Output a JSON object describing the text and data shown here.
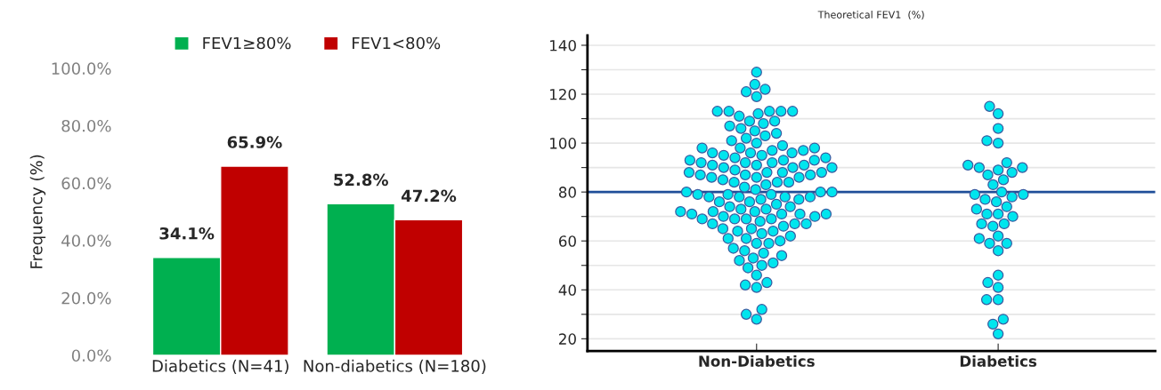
{
  "chart_data": [
    {
      "type": "bar",
      "ylabel": "Frequency (%)",
      "categories": [
        "Diabetics (N=41)",
        "Non-diabetics (N=180)"
      ],
      "series": [
        {
          "name": "FEV1≥80%",
          "color": "#00b050",
          "values": [
            34.1,
            52.8
          ],
          "value_labels": [
            "34.1%",
            "52.8%"
          ]
        },
        {
          "name": "FEV1<80%",
          "color": "#c00000",
          "values": [
            65.9,
            47.2
          ],
          "value_labels": [
            "65.9%",
            "47.2%"
          ]
        }
      ],
      "ylim": [
        0,
        100
      ],
      "yticks": [
        {
          "value": 0,
          "label": "0.0%"
        },
        {
          "value": 20,
          "label": "20.0%"
        },
        {
          "value": 40,
          "label": "40.0%"
        },
        {
          "value": 60,
          "label": "60.0%"
        },
        {
          "value": 80,
          "label": "80.0%"
        },
        {
          "value": 100,
          "label": "100.0%"
        }
      ],
      "grid": false,
      "legend": "top"
    },
    {
      "type": "scatter",
      "title": "Theoretical FEV1  (%)",
      "categories": [
        "Non-Diabetics",
        "Diabetics"
      ],
      "series": [
        {
          "color": "#00e5ee",
          "x": [
            "Non-Diabetics",
            "Non-Diabetics",
            "Non-Diabetics",
            "Non-Diabetics",
            "Non-Diabetics",
            "Non-Diabetics",
            "Non-Diabetics",
            "Non-Diabetics",
            "Non-Diabetics",
            "Non-Diabetics",
            "Non-Diabetics",
            "Non-Diabetics",
            "Non-Diabetics",
            "Non-Diabetics",
            "Non-Diabetics",
            "Non-Diabetics",
            "Non-Diabetics",
            "Non-Diabetics",
            "Non-Diabetics",
            "Non-Diabetics",
            "Non-Diabetics",
            "Non-Diabetics",
            "Non-Diabetics",
            "Non-Diabetics",
            "Non-Diabetics",
            "Non-Diabetics",
            "Non-Diabetics",
            "Non-Diabetics",
            "Non-Diabetics",
            "Non-Diabetics",
            "Non-Diabetics",
            "Non-Diabetics",
            "Non-Diabetics",
            "Non-Diabetics",
            "Non-Diabetics",
            "Non-Diabetics",
            "Non-Diabetics",
            "Non-Diabetics",
            "Non-Diabetics",
            "Non-Diabetics",
            "Non-Diabetics",
            "Non-Diabetics",
            "Non-Diabetics",
            "Non-Diabetics",
            "Non-Diabetics",
            "Non-Diabetics",
            "Non-Diabetics",
            "Non-Diabetics",
            "Non-Diabetics",
            "Non-Diabetics",
            "Non-Diabetics",
            "Non-Diabetics",
            "Non-Diabetics",
            "Non-Diabetics",
            "Non-Diabetics",
            "Non-Diabetics",
            "Non-Diabetics",
            "Non-Diabetics",
            "Non-Diabetics",
            "Non-Diabetics",
            "Non-Diabetics",
            "Non-Diabetics",
            "Non-Diabetics",
            "Non-Diabetics",
            "Non-Diabetics",
            "Non-Diabetics",
            "Non-Diabetics",
            "Non-Diabetics",
            "Non-Diabetics",
            "Non-Diabetics",
            "Non-Diabetics",
            "Non-Diabetics",
            "Non-Diabetics",
            "Non-Diabetics",
            "Non-Diabetics",
            "Non-Diabetics",
            "Non-Diabetics",
            "Non-Diabetics",
            "Non-Diabetics",
            "Non-Diabetics",
            "Non-Diabetics",
            "Non-Diabetics",
            "Non-Diabetics",
            "Non-Diabetics",
            "Non-Diabetics",
            "Non-Diabetics",
            "Non-Diabetics",
            "Non-Diabetics",
            "Non-Diabetics",
            "Non-Diabetics",
            "Non-Diabetics",
            "Non-Diabetics",
            "Non-Diabetics",
            "Non-Diabetics",
            "Non-Diabetics",
            "Non-Diabetics",
            "Non-Diabetics",
            "Non-Diabetics",
            "Non-Diabetics",
            "Non-Diabetics",
            "Non-Diabetics",
            "Non-Diabetics",
            "Non-Diabetics",
            "Non-Diabetics",
            "Non-Diabetics",
            "Non-Diabetics",
            "Non-Diabetics",
            "Non-Diabetics",
            "Non-Diabetics",
            "Non-Diabetics",
            "Non-Diabetics",
            "Non-Diabetics",
            "Non-Diabetics",
            "Non-Diabetics",
            "Non-Diabetics",
            "Non-Diabetics",
            "Non-Diabetics",
            "Non-Diabetics",
            "Non-Diabetics",
            "Non-Diabetics",
            "Non-Diabetics",
            "Non-Diabetics",
            "Non-Diabetics",
            "Non-Diabetics",
            "Non-Diabetics",
            "Non-Diabetics",
            "Non-Diabetics",
            "Non-Diabetics",
            "Non-Diabetics",
            "Non-Diabetics"
          ],
          "values": [
            129,
            124,
            122,
            121,
            119,
            113,
            113,
            113,
            113,
            113,
            112,
            111,
            109,
            109,
            108,
            107,
            106,
            105,
            104,
            103,
            102,
            101,
            100,
            99,
            98,
            98,
            98,
            97,
            96,
            96,
            96,
            95,
            94,
            94,
            93,
            93,
            93,
            92,
            92,
            91,
            91,
            91,
            90,
            90,
            89,
            88,
            88,
            88,
            88,
            87,
            87,
            86,
            86,
            86,
            85,
            84,
            84,
            83,
            82,
            81,
            80,
            80,
            79,
            79,
            79,
            78,
            78,
            78,
            77,
            77,
            76,
            76,
            75,
            74,
            74,
            73,
            73,
            72,
            72,
            72,
            71,
            71,
            71,
            70,
            70,
            69,
            69,
            69,
            68,
            67,
            67,
            66,
            65,
            65,
            64,
            64,
            63,
            62,
            61,
            60,
            59,
            59,
            57,
            56,
            55,
            54,
            53,
            52,
            51,
            50,
            49,
            46,
            43,
            42,
            41,
            32,
            30,
            28,
            87,
            90,
            92,
            95,
            97,
            84,
            80,
            78,
            71,
            69,
            67,
            61
          ]
        },
        {
          "color": "#00e5ee",
          "x": [
            "Diabetics",
            "Diabetics",
            "Diabetics",
            "Diabetics",
            "Diabetics",
            "Diabetics",
            "Diabetics",
            "Diabetics",
            "Diabetics",
            "Diabetics",
            "Diabetics",
            "Diabetics",
            "Diabetics",
            "Diabetics",
            "Diabetics",
            "Diabetics",
            "Diabetics",
            "Diabetics",
            "Diabetics",
            "Diabetics",
            "Diabetics",
            "Diabetics",
            "Diabetics",
            "Diabetics",
            "Diabetics",
            "Diabetics",
            "Diabetics",
            "Diabetics",
            "Diabetics",
            "Diabetics",
            "Diabetics",
            "Diabetics",
            "Diabetics",
            "Diabetics",
            "Diabetics",
            "Diabetics",
            "Diabetics",
            "Diabetics",
            "Diabetics",
            "Diabetics",
            "Diabetics"
          ],
          "values": [
            115,
            112,
            106,
            100,
            101,
            92,
            90,
            90,
            89,
            91,
            88,
            87,
            85,
            83,
            80,
            79,
            79,
            78,
            77,
            76,
            74,
            73,
            71,
            71,
            70,
            67,
            67,
            66,
            62,
            61,
            59,
            59,
            56,
            46,
            43,
            41,
            36,
            36,
            28,
            26,
            22
          ]
        }
      ],
      "ylim": [
        15,
        144
      ],
      "yticks": [
        20,
        {
          "value": 30,
          "label": null
        },
        40,
        {
          "value": 50,
          "label": null
        },
        60,
        {
          "value": 70,
          "label": null
        },
        80,
        {
          "value": 90,
          "label": null
        },
        100,
        {
          "value": 110,
          "label": null
        },
        120,
        {
          "value": 130,
          "label": null
        },
        140
      ],
      "ref_lines": [
        {
          "axis": "y",
          "value": 80,
          "color": "#1f4e99"
        }
      ],
      "grid": true,
      "marker": "circle"
    }
  ]
}
